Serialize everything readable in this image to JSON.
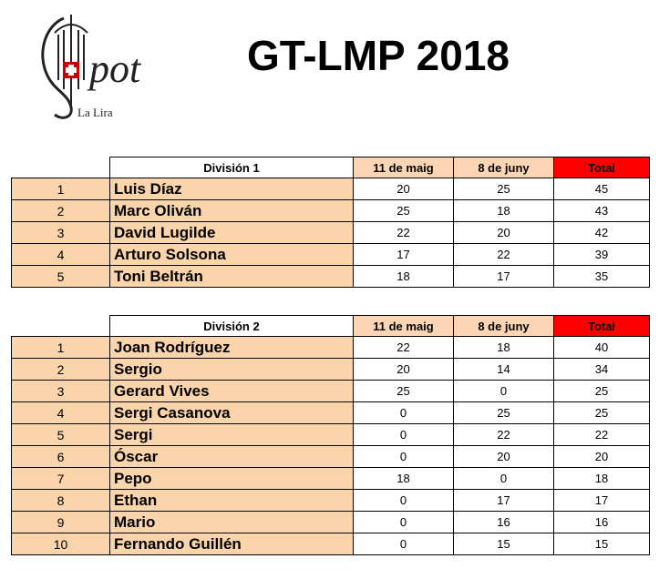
{
  "header": {
    "title": "GT-LMP 2018",
    "logo_mark": "pot",
    "logo_caption": "La Lira"
  },
  "tables": [
    {
      "columns": [
        "División 1",
        "11 de maig",
        "8 de juny",
        "Total"
      ],
      "rows": [
        [
          1,
          "Luis Díaz",
          20,
          25,
          45
        ],
        [
          2,
          "Marc Oliván",
          25,
          18,
          43
        ],
        [
          3,
          "David Lugilde",
          22,
          20,
          42
        ],
        [
          4,
          "Arturo Solsona",
          17,
          22,
          39
        ],
        [
          5,
          "Toni Beltrán",
          18,
          17,
          35
        ]
      ]
    },
    {
      "columns": [
        "División 2",
        "11 de maig",
        "8 de juny",
        "Total"
      ],
      "rows": [
        [
          1,
          "Joan Rodríguez",
          22,
          18,
          40
        ],
        [
          2,
          "Sergio",
          20,
          14,
          34
        ],
        [
          3,
          "Gerard Vives",
          25,
          0,
          25
        ],
        [
          4,
          "Sergi Casanova",
          0,
          25,
          25
        ],
        [
          5,
          "Sergi",
          0,
          22,
          22
        ],
        [
          6,
          "Óscar",
          0,
          20,
          20
        ],
        [
          7,
          "Pepo",
          18,
          0,
          18
        ],
        [
          8,
          "Ethan",
          0,
          17,
          17
        ],
        [
          9,
          "Mario",
          0,
          16,
          16
        ],
        [
          10,
          "Fernando Guillén",
          0,
          15,
          15
        ]
      ]
    }
  ]
}
